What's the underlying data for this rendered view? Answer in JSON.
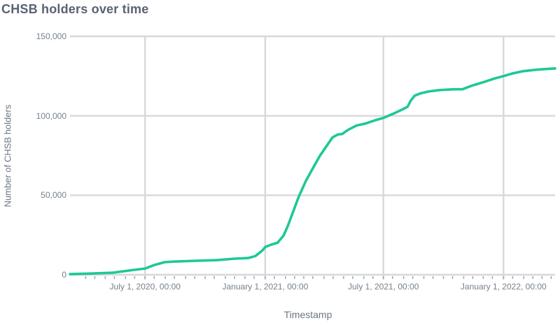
{
  "header": {
    "title": "CHSB holders over time"
  },
  "colors": {
    "background": "#ffffff",
    "line": "#1ec896",
    "grid": "#d8d8d8",
    "minor_tick": "#a6adb5",
    "title_text": "#586274",
    "tick_text": "#75808d",
    "axis_title_text": "#6d7684"
  },
  "chart_data": {
    "type": "line",
    "title": "CHSB holders over time",
    "xlabel": "Timestamp",
    "ylabel": "Number of CHSB holders",
    "xlim": [
      "2020-03-08",
      "2022-03-21"
    ],
    "ylim": [
      0,
      150000
    ],
    "grid": true,
    "legend_position": "none",
    "yticks": [
      {
        "value": 0,
        "label": "0"
      },
      {
        "value": 50000,
        "label": "50,000"
      },
      {
        "value": 100000,
        "label": "100,000"
      },
      {
        "value": 150000,
        "label": "150,000"
      }
    ],
    "xticks": [
      {
        "date": "2020-07-01",
        "label": "July 1, 2020, 00:00"
      },
      {
        "date": "2021-01-01",
        "label": "January 1, 2021, 00:00"
      },
      {
        "date": "2021-07-01",
        "label": "July 1, 2021, 00:00"
      },
      {
        "date": "2022-01-01",
        "label": "January 1, 2022, 00:00"
      }
    ],
    "series": [
      {
        "name": "CHSB holders",
        "color": "#1ec896",
        "points": [
          [
            "2020-03-08",
            400
          ],
          [
            "2020-04-11",
            800
          ],
          [
            "2020-05-13",
            1300
          ],
          [
            "2020-05-29",
            2200
          ],
          [
            "2020-06-14",
            3100
          ],
          [
            "2020-07-01",
            3900
          ],
          [
            "2020-07-15",
            6100
          ],
          [
            "2020-07-31",
            7900
          ],
          [
            "2020-08-16",
            8300
          ],
          [
            "2020-09-17",
            8800
          ],
          [
            "2020-10-19",
            9200
          ],
          [
            "2020-11-15",
            10100
          ],
          [
            "2020-12-06",
            10500
          ],
          [
            "2020-12-17",
            11800
          ],
          [
            "2020-12-28",
            15400
          ],
          [
            "2021-01-01",
            17500
          ],
          [
            "2021-01-10",
            18900
          ],
          [
            "2021-01-20",
            20200
          ],
          [
            "2021-01-29",
            24600
          ],
          [
            "2021-02-05",
            31100
          ],
          [
            "2021-02-13",
            39900
          ],
          [
            "2021-02-21",
            48700
          ],
          [
            "2021-03-04",
            58800
          ],
          [
            "2021-03-15",
            67100
          ],
          [
            "2021-03-26",
            75000
          ],
          [
            "2021-04-06",
            81600
          ],
          [
            "2021-04-14",
            86400
          ],
          [
            "2021-04-22",
            88200
          ],
          [
            "2021-04-29",
            88600
          ],
          [
            "2021-05-08",
            91200
          ],
          [
            "2021-05-21",
            93900
          ],
          [
            "2021-06-04",
            95200
          ],
          [
            "2021-06-20",
            97400
          ],
          [
            "2021-07-01",
            98700
          ],
          [
            "2021-07-16",
            101300
          ],
          [
            "2021-07-30",
            104000
          ],
          [
            "2021-08-07",
            105700
          ],
          [
            "2021-08-12",
            109600
          ],
          [
            "2021-08-18",
            112700
          ],
          [
            "2021-08-26",
            114000
          ],
          [
            "2021-09-08",
            115300
          ],
          [
            "2021-09-25",
            116200
          ],
          [
            "2021-10-17",
            116700
          ],
          [
            "2021-10-30",
            116700
          ],
          [
            "2021-11-13",
            118900
          ],
          [
            "2021-11-30",
            121000
          ],
          [
            "2021-12-16",
            123200
          ],
          [
            "2022-01-01",
            125000
          ],
          [
            "2022-01-15",
            126700
          ],
          [
            "2022-01-31",
            128100
          ],
          [
            "2022-02-17",
            128900
          ],
          [
            "2022-03-05",
            129400
          ],
          [
            "2022-03-21",
            129800
          ]
        ]
      }
    ]
  }
}
